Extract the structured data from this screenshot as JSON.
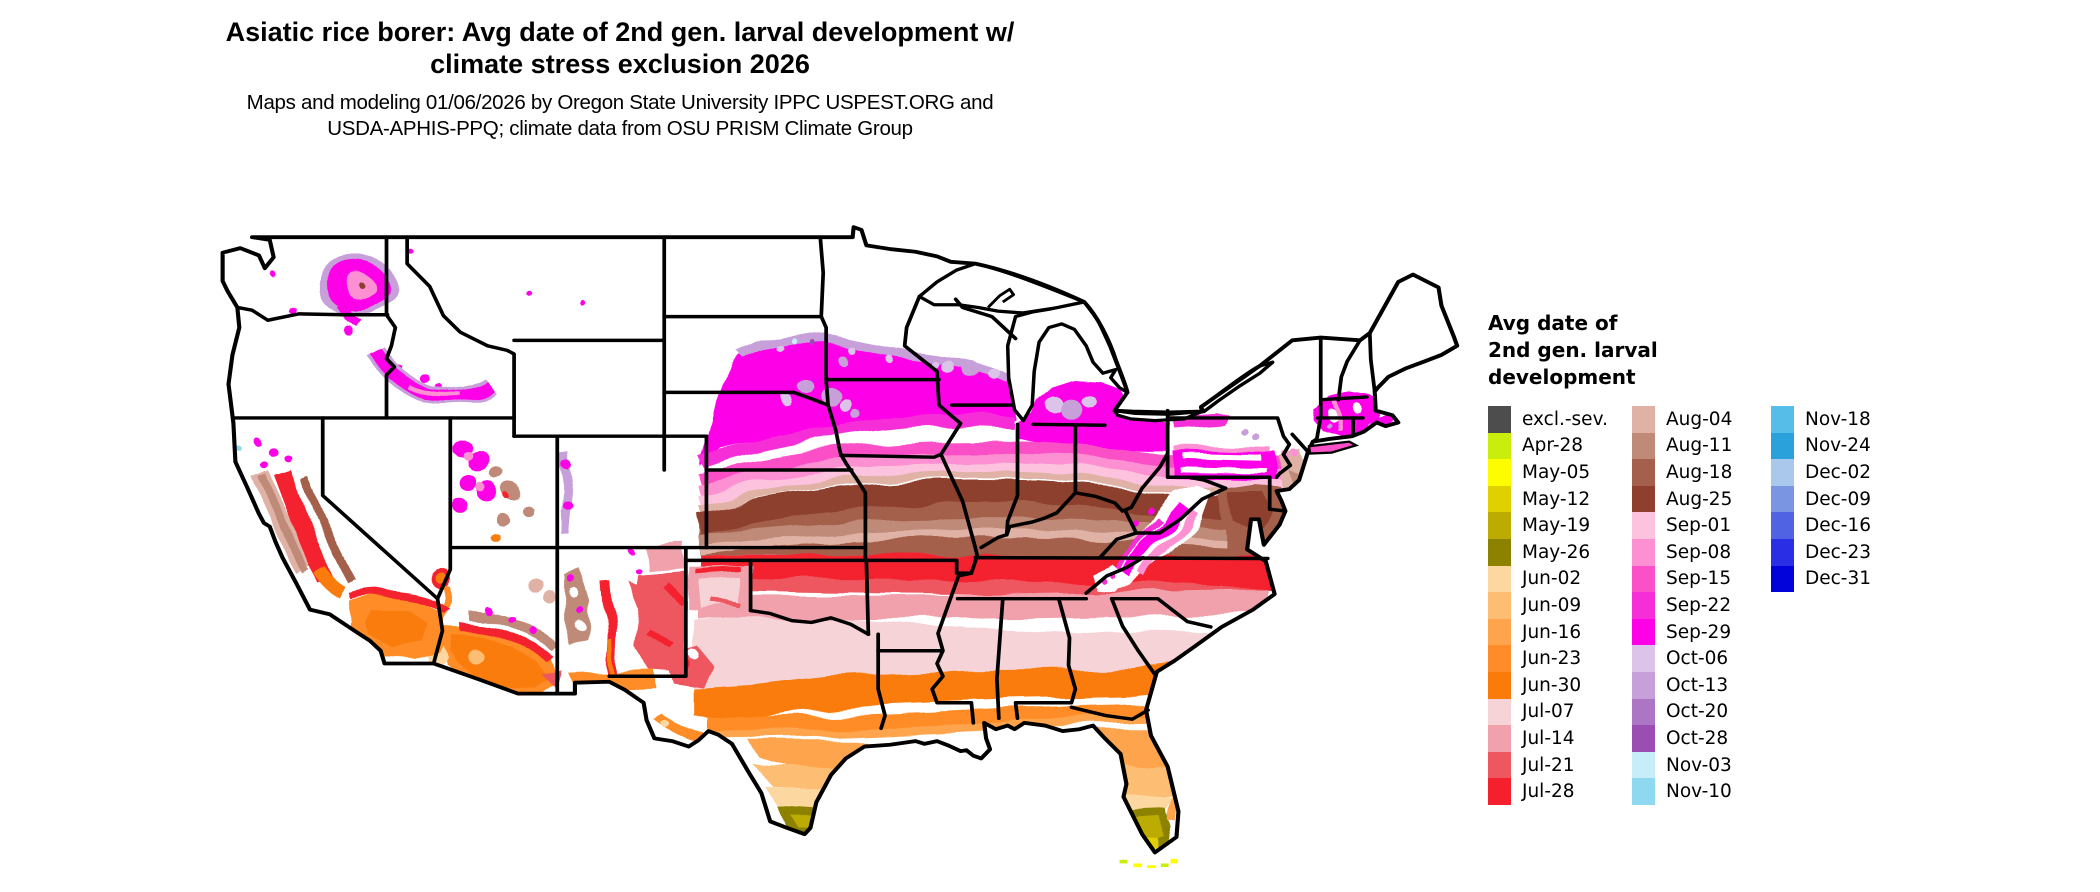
{
  "title": {
    "line1": "Asiatic rice borer: Avg date of 2nd gen. larval development w/",
    "line2": "climate stress exclusion 2026"
  },
  "subtitle": {
    "line1": "Maps and modeling 01/06/2026 by Oregon State University IPPC USPEST.ORG and",
    "line2": "USDA-APHIS-PPQ; climate data from OSU PRISM Climate Group"
  },
  "legend": {
    "title_lines": [
      "Avg date of",
      "2nd gen. larval",
      "development"
    ],
    "columns": [
      [
        {
          "label": "excl.-sev.",
          "color": "#4d4d4d"
        },
        {
          "label": "Apr-28",
          "color": "#c9ee0e"
        },
        {
          "label": "May-05",
          "color": "#fdfd00"
        },
        {
          "label": "May-12",
          "color": "#e0d000"
        },
        {
          "label": "May-19",
          "color": "#bcab00"
        },
        {
          "label": "May-26",
          "color": "#8c8200"
        },
        {
          "label": "Jun-02",
          "color": "#fcd79f"
        },
        {
          "label": "Jun-09",
          "color": "#fdbd72"
        },
        {
          "label": "Jun-16",
          "color": "#fea44d"
        },
        {
          "label": "Jun-23",
          "color": "#ff8c28"
        },
        {
          "label": "Jun-30",
          "color": "#fa7b0a"
        },
        {
          "label": "Jul-07",
          "color": "#f6d3d6"
        },
        {
          "label": "Jul-14",
          "color": "#f0a1ab"
        },
        {
          "label": "Jul-21",
          "color": "#ee5660"
        },
        {
          "label": "Jul-28",
          "color": "#f4202d"
        }
      ],
      [
        {
          "label": "Aug-04",
          "color": "#e0b2a6"
        },
        {
          "label": "Aug-11",
          "color": "#bf8b78"
        },
        {
          "label": "Aug-18",
          "color": "#a4604c"
        },
        {
          "label": "Aug-25",
          "color": "#8e3f2e"
        },
        {
          "label": "Sep-01",
          "color": "#fdc3de"
        },
        {
          "label": "Sep-08",
          "color": "#fc90d2"
        },
        {
          "label": "Sep-15",
          "color": "#fb50c8"
        },
        {
          "label": "Sep-22",
          "color": "#f62ed8"
        },
        {
          "label": "Sep-29",
          "color": "#fe00e8"
        },
        {
          "label": "Oct-06",
          "color": "#dcc3e9"
        },
        {
          "label": "Oct-13",
          "color": "#c79fd9"
        },
        {
          "label": "Oct-20",
          "color": "#ad76c4"
        },
        {
          "label": "Oct-28",
          "color": "#9a4eb1"
        },
        {
          "label": "Nov-03",
          "color": "#c7edf9"
        },
        {
          "label": "Nov-10",
          "color": "#8ed9f0"
        }
      ],
      [
        {
          "label": "Nov-18",
          "color": "#55bde7"
        },
        {
          "label": "Nov-24",
          "color": "#2aa1da"
        },
        {
          "label": "Dec-02",
          "color": "#a9c8eb"
        },
        {
          "label": "Dec-09",
          "color": "#7a96e3"
        },
        {
          "label": "Dec-16",
          "color": "#4f63e3"
        },
        {
          "label": "Dec-23",
          "color": "#2a2fe5"
        },
        {
          "label": "Dec-31",
          "color": "#0202da"
        }
      ]
    ]
  },
  "map": {
    "land_color": "#ffffff",
    "border_color": "#000000",
    "regions": [
      {
        "area": "North Dakota, Montana, Wyoming, northern Minnesota/Wisconsin/Michigan, high Rockies, northern New England",
        "value": "white (excluded / not completed)"
      },
      {
        "area": "Southern Minnesota, eastern Dakotas, Nebraska, Wisconsin, southern Michigan, southern New England",
        "value": "Sep-22 / Sep-29"
      },
      {
        "area": "Fringes of the magenta zones",
        "value": "Oct-06 / Oct-13"
      },
      {
        "area": "Iowa, northern Illinois-Indiana-Ohio, southern Pennsylvania valleys",
        "value": "Sep-01 / Sep-08 / Sep-15"
      },
      {
        "area": "Kansas, Missouri, Kentucky, West Virginia, Virginia, Maryland-Delaware",
        "value": "Aug-11 / Aug-18 / Aug-25"
      },
      {
        "area": "Oklahoma, Arkansas, Tennessee, Carolinas",
        "value": "Jul-21 / Jul-28"
      },
      {
        "area": "North-central Texas, central Georgia/Alabama/Mississippi",
        "value": "Jul-07 / Jul-14"
      },
      {
        "area": "Gulf Coast, Louisiana, south Georgia, north Florida",
        "value": "Jun-23 / Jun-30"
      },
      {
        "area": "South Texas coastal plain, central Florida",
        "value": "Jun-02 - Jun-16"
      },
      {
        "area": "Lower Rio Grande valley, south Florida",
        "value": "May-19 / May-26"
      },
      {
        "area": "Florida Keys",
        "value": "Apr-28 / May-05"
      },
      {
        "area": "Columbia Basin WA, Snake River Plain ID, Great Basin patches",
        "value": "Sep-22 - Sep-29"
      },
      {
        "area": "California Central Valley",
        "value": "Jul-21 / Jul-28"
      },
      {
        "area": "Mojave and Sonoran deserts, Phoenix-Yuma",
        "value": "Jun-23 / Jun-30, May-26 near Yuma"
      }
    ]
  }
}
